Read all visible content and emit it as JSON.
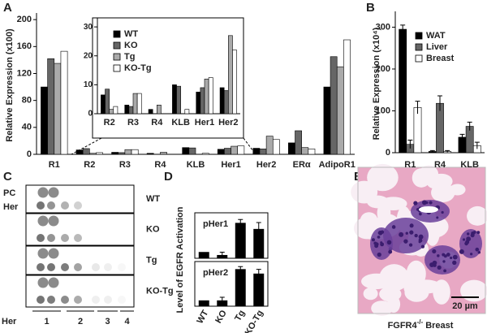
{
  "panel_letters": [
    "A",
    "B",
    "C",
    "D",
    "E"
  ],
  "chart_data": [
    {
      "type": "bar",
      "ylabel": "Relative Expression (x100)",
      "categories": [
        "R1",
        "R2",
        "R3",
        "R4",
        "KLB",
        "Her1",
        "Her2",
        "ERα",
        "AdipoR1"
      ],
      "ylim": [
        0,
        205
      ],
      "yticks": [
        0,
        40,
        80,
        120,
        160,
        200
      ],
      "legend": "inset",
      "series": [
        {
          "name": "WT",
          "color": "#000000",
          "values": [
            100,
            6.5,
            3,
            1.5,
            10,
            7.5,
            9,
            17,
            100
          ]
        },
        {
          "name": "KO",
          "color": "#666666",
          "values": [
            142,
            8.5,
            2.5,
            0,
            9.5,
            9,
            8,
            35,
            145
          ]
        },
        {
          "name": "Tg",
          "color": "#aaaaaa",
          "values": [
            135,
            1.5,
            7,
            3,
            0,
            12,
            27,
            10,
            130
          ]
        },
        {
          "name": "KO-Tg",
          "color": "#ffffff",
          "values": [
            153,
            2.5,
            7,
            0,
            1.5,
            12.5,
            22,
            8,
            170
          ]
        }
      ]
    },
    {
      "type": "bar",
      "categories": [
        "R2",
        "R3",
        "R4",
        "KLB",
        "Her1",
        "Her2"
      ],
      "ylim": [
        0,
        32
      ],
      "yticks": [
        0,
        10,
        20,
        30
      ],
      "series": [
        {
          "color": "#000000",
          "values": [
            6.5,
            3,
            1.5,
            10,
            7.5,
            9
          ]
        },
        {
          "color": "#666666",
          "values": [
            8.5,
            2.5,
            0,
            9.5,
            9,
            8
          ]
        },
        {
          "color": "#aaaaaa",
          "values": [
            1.5,
            7,
            3,
            0,
            12,
            27
          ]
        },
        {
          "color": "#ffffff",
          "values": [
            2.5,
            7,
            0,
            1.5,
            12.5,
            22
          ]
        }
      ]
    },
    {
      "type": "bar",
      "ylabel": "Relative Expression (x10⁴)",
      "categories": [
        "R1",
        "R4",
        "KLB"
      ],
      "ylim": [
        0,
        330
      ],
      "yticks": [
        0,
        100,
        200,
        300
      ],
      "legend": "upper right",
      "series": [
        {
          "name": "WAT",
          "color": "#000000",
          "values": [
            295,
            3,
            37
          ],
          "errors": [
            10,
            2,
            7
          ]
        },
        {
          "name": "Liver",
          "color": "#666666",
          "values": [
            20,
            118,
            63
          ],
          "errors": [
            10,
            18,
            10
          ]
        },
        {
          "name": "Breast",
          "color": "#ffffff",
          "values": [
            108,
            3,
            17
          ],
          "errors": [
            15,
            2,
            8
          ]
        }
      ]
    },
    {
      "type": "bar",
      "title": "pHer1",
      "ylabel": "Level of EGFR Activation",
      "ylim": [
        0,
        7.5
      ],
      "series": [
        {
          "color": "#000000",
          "values": [
            1,
            0.5,
            5.8,
            4.8
          ],
          "errors": [
            0,
            0.5,
            0.6,
            1.1
          ]
        }
      ]
    },
    {
      "type": "bar",
      "title": "pHer2",
      "ylim": [
        0,
        8
      ],
      "categories": [
        "WT",
        "KO",
        "Tg",
        "KO-Tg"
      ],
      "series": [
        {
          "color": "#000000",
          "values": [
            1,
            1,
            6.6,
            5.8
          ],
          "errors": [
            0,
            0.6,
            0.5,
            0.8
          ]
        }
      ]
    }
  ],
  "blot": {
    "row_labels": [
      "PC",
      "Her"
    ],
    "samples": [
      "WT",
      "KO",
      "Tg",
      "KO-Tg"
    ],
    "axis_label": "Her",
    "lanes": [
      "1",
      "2",
      "3",
      "4"
    ]
  },
  "histology": {
    "scale": "20 µm",
    "label_main": "FGFR4",
    "label_sup": "-/-",
    "label_tail": "Breast"
  }
}
